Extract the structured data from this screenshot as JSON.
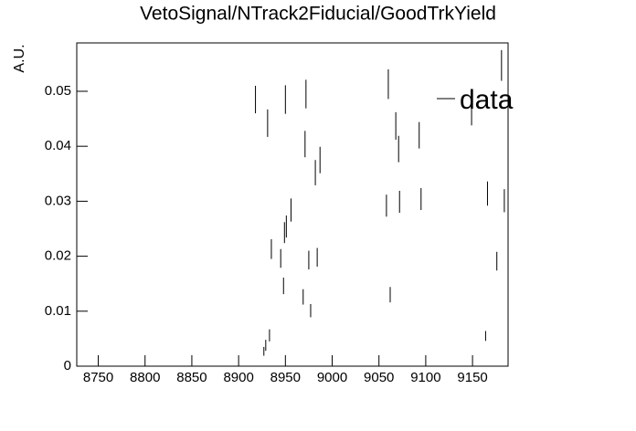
{
  "chart_data": {
    "type": "errorbar",
    "title": "VetoSignal/NTrack2Fiducial/GoodTrkYield",
    "y_label": "A.U.",
    "xlim": [
      8727,
      9188
    ],
    "ylim": [
      0,
      0.0588
    ],
    "xticks": [
      8750,
      8800,
      8850,
      8900,
      8950,
      9000,
      9050,
      9100,
      9150
    ],
    "yticks": [
      0,
      0.01,
      0.02,
      0.03,
      0.04,
      0.05
    ],
    "legend": "upper right",
    "series": [
      {
        "name": "data",
        "color": "#000000",
        "x": [
          8918,
          8927,
          8929,
          8931,
          8933,
          8935,
          8945,
          8948,
          8949,
          8950,
          8951,
          8956,
          8969,
          8971,
          8972,
          8975,
          8977,
          8982,
          8984,
          8987,
          9058,
          9060,
          9062,
          9068,
          9071,
          9072,
          9093,
          9095,
          9149,
          9164,
          9166,
          9176,
          9181,
          9184
        ],
        "values": [
          0.0485,
          0.0027,
          0.0038,
          0.0442,
          0.0056,
          0.0213,
          0.0196,
          0.0146,
          0.0243,
          0.0485,
          0.0254,
          0.0284,
          0.0126,
          0.0404,
          0.0495,
          0.0193,
          0.0101,
          0.0352,
          0.0198,
          0.0375,
          0.0292,
          0.0513,
          0.013,
          0.0437,
          0.0395,
          0.0299,
          0.042,
          0.0304,
          0.0463,
          0.0055,
          0.0314,
          0.0191,
          0.0547,
          0.0301
        ],
        "errors": [
          0.0025,
          0.0008,
          0.001,
          0.0025,
          0.0011,
          0.0018,
          0.0017,
          0.0015,
          0.0019,
          0.0026,
          0.002,
          0.0021,
          0.0014,
          0.0024,
          0.0026,
          0.0017,
          0.0012,
          0.0023,
          0.0017,
          0.0024,
          0.002,
          0.0027,
          0.0014,
          0.0025,
          0.0024,
          0.002,
          0.0024,
          0.002,
          0.0025,
          0.0009,
          0.0022,
          0.0017,
          0.0028,
          0.0021
        ]
      }
    ]
  }
}
